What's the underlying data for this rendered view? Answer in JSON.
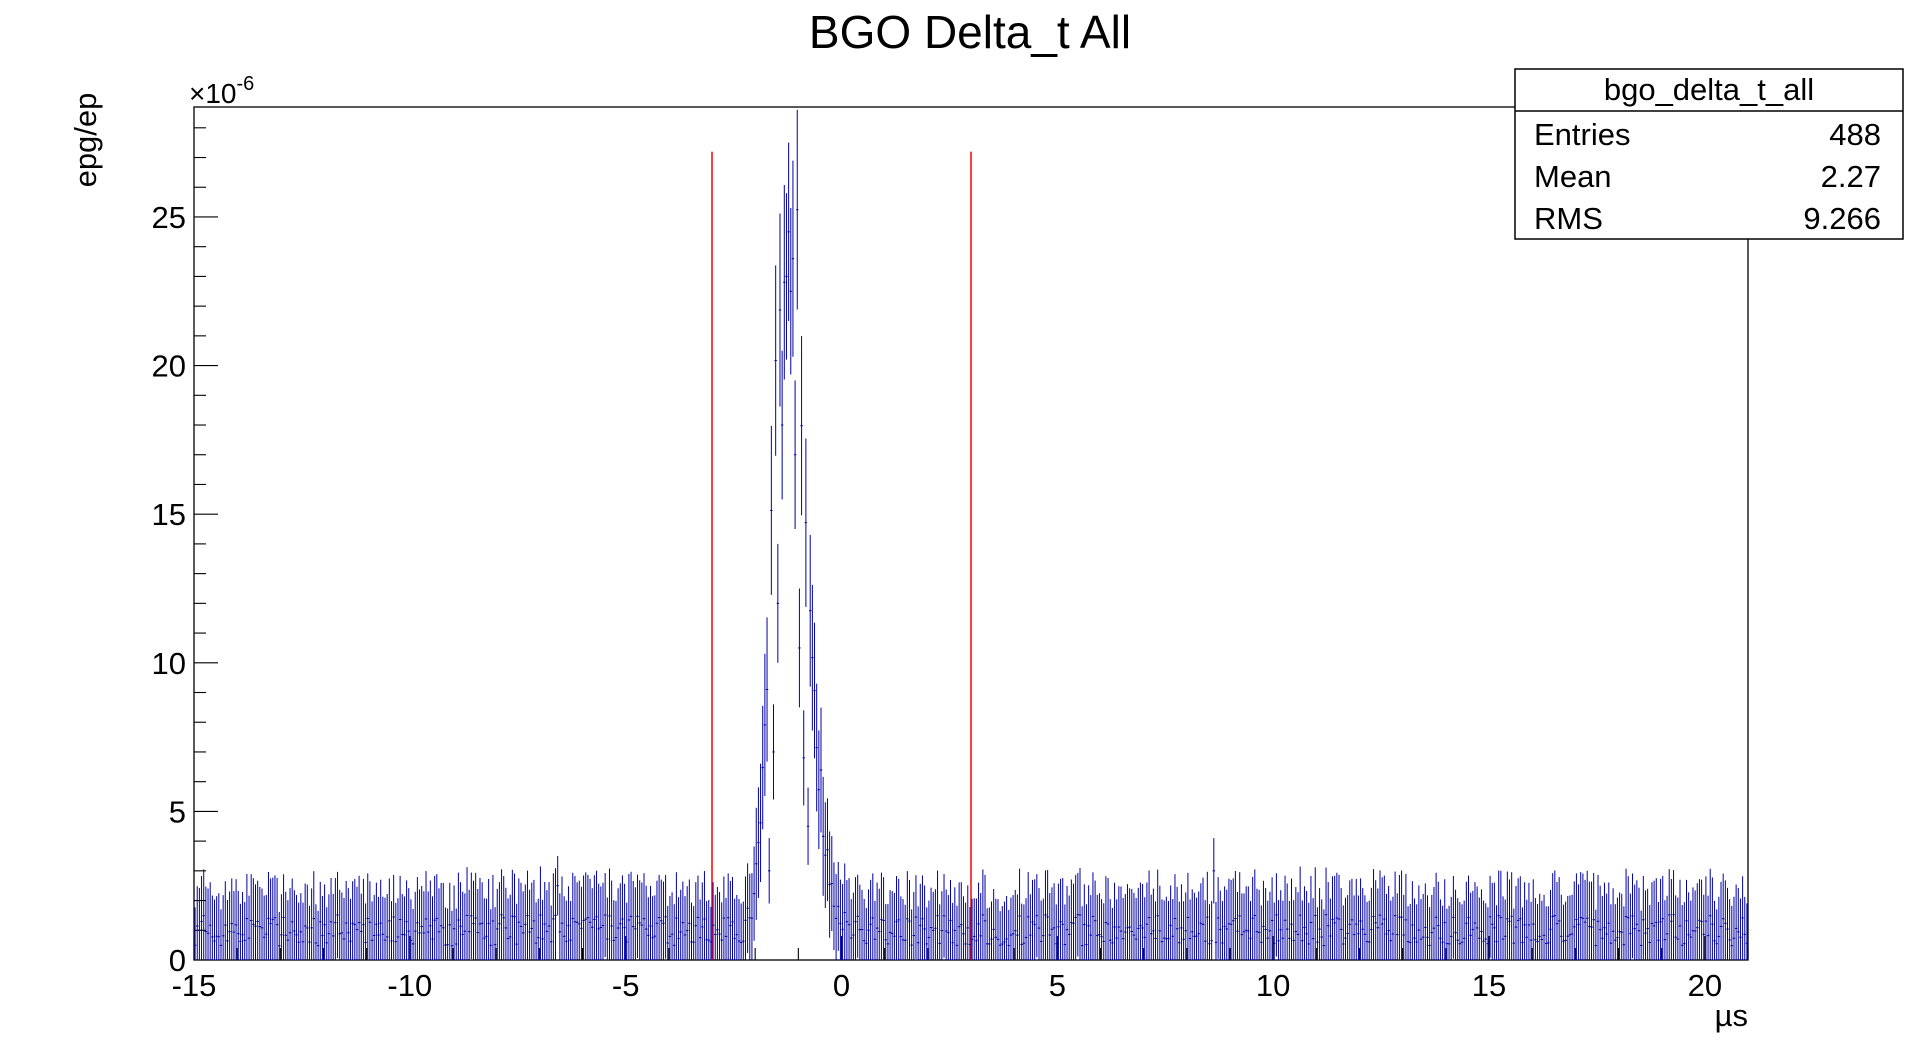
{
  "chart_data": {
    "type": "histogram",
    "title": "BGO Delta_t All",
    "xlabel": "µs",
    "ylabel": "epg/ep",
    "y_multiplier": "×10",
    "y_multiplier_exponent": "-6",
    "xlim": [
      -15,
      21
    ],
    "ylim": [
      0,
      28.7
    ],
    "x_ticks": [
      -15,
      -10,
      -5,
      0,
      5,
      10,
      15,
      20
    ],
    "y_ticks": [
      0,
      5,
      10,
      15,
      20,
      25
    ],
    "x_tick_labels": [
      "-15",
      "-10",
      "-5",
      "0",
      "5",
      "10",
      "15",
      "20"
    ],
    "y_tick_labels": [
      "0",
      "5",
      "10",
      "15",
      "20",
      "25"
    ],
    "bin_width": 0.05,
    "series": [
      {
        "color": "#0000a8",
        "peak": {
          "center": -1.25,
          "height": 25.0,
          "sigma_left": 0.32,
          "sigma_right": 0.42
        },
        "background_level": 1.0,
        "background_error": 0.8,
        "selected_points": [
          {
            "x": -1.25,
            "y": 24.5,
            "err": 3.0
          },
          {
            "x": -1.3,
            "y": 23.0,
            "err": 2.8
          },
          {
            "x": -1.2,
            "y": 22.5,
            "err": 2.8
          },
          {
            "x": -1.4,
            "y": 18.0,
            "err": 2.5
          },
          {
            "x": -1.1,
            "y": 17.0,
            "err": 2.5
          },
          {
            "x": -1.5,
            "y": 12.0,
            "err": 2.0
          },
          {
            "x": -1.0,
            "y": 10.5,
            "err": 2.0
          },
          {
            "x": -0.9,
            "y": 6.8,
            "err": 1.6
          },
          {
            "x": -1.6,
            "y": 7.0,
            "err": 1.6
          },
          {
            "x": -0.8,
            "y": 4.5,
            "err": 1.3
          },
          {
            "x": -1.7,
            "y": 3.0,
            "err": 1.1
          },
          {
            "x": 8.6,
            "y": 3.0,
            "err": 1.1
          },
          {
            "x": -6.6,
            "y": 2.5,
            "err": 1.0
          }
        ]
      }
    ],
    "cut_lines": {
      "color": "#ff0000",
      "x": [
        -3.0,
        3.0
      ],
      "top": 27.2
    },
    "stats_box": {
      "name": "bgo_delta_t_all",
      "rows": [
        {
          "label": "Entries",
          "value": "488"
        },
        {
          "label": "Mean",
          "value": "2.27"
        },
        {
          "label": "RMS",
          "value": "9.266"
        }
      ]
    }
  }
}
